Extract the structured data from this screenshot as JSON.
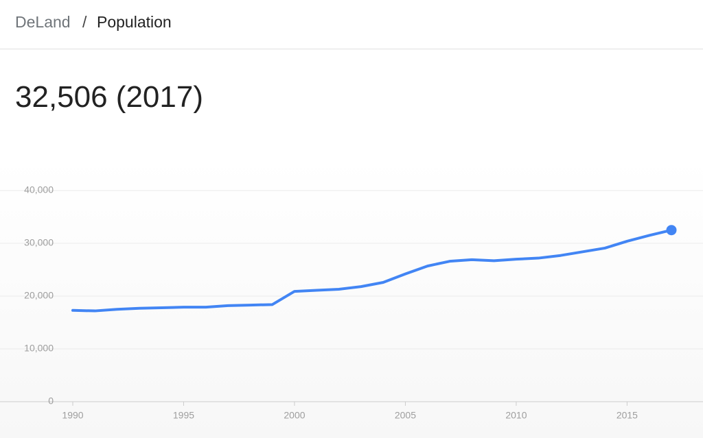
{
  "header": {
    "place": "DeLand",
    "separator": "/",
    "topic": "Population"
  },
  "headline": "32,506 (2017)",
  "chart_data": {
    "type": "line",
    "x": [
      1990,
      1991,
      1992,
      1993,
      1994,
      1995,
      1996,
      1997,
      1998,
      1999,
      2000,
      2001,
      2002,
      2003,
      2004,
      2005,
      2006,
      2007,
      2008,
      2009,
      2010,
      2011,
      2012,
      2013,
      2014,
      2015,
      2016,
      2017
    ],
    "values": [
      17300,
      17200,
      17500,
      17700,
      17800,
      17900,
      17900,
      18200,
      18300,
      18400,
      20900,
      21100,
      21300,
      21800,
      22600,
      24200,
      25700,
      26600,
      26900,
      26700,
      27000,
      27200,
      27700,
      28400,
      29100,
      30400,
      31500,
      32506
    ],
    "color": "#4285f4",
    "xlim": [
      1990,
      2017
    ],
    "xticks": [
      1990,
      1995,
      2000,
      2005,
      2010,
      2015
    ],
    "ylim": [
      0,
      40000
    ],
    "yticks": [
      0,
      {
        "value": 10000,
        "label": "10,000"
      },
      {
        "value": 20000,
        "label": "20,000"
      },
      {
        "value": 30000,
        "label": "30,000"
      },
      {
        "value": 40000,
        "label": "40,000"
      }
    ],
    "grid": true
  }
}
